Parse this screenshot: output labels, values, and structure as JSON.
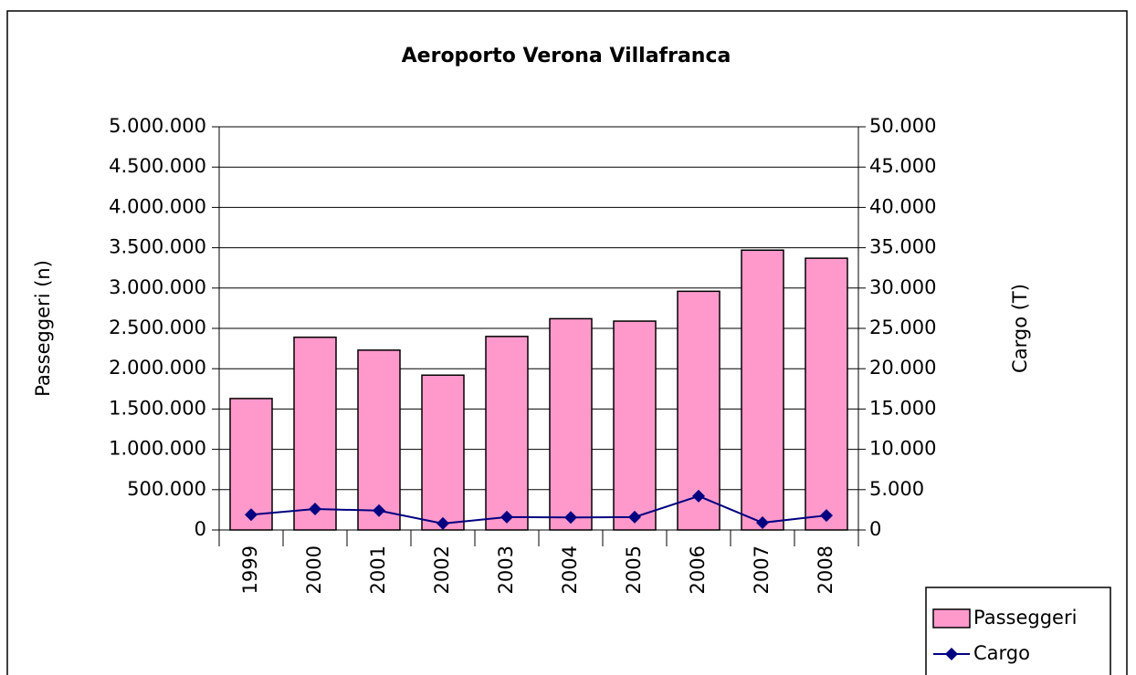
{
  "chart_data": {
    "type": "bar",
    "title": "Aeroporto Verona Villafranca",
    "ylabel": "Passeggeri (n)",
    "y2label": "Cargo (T)",
    "categories": [
      "1999",
      "2000",
      "2001",
      "2002",
      "2003",
      "2004",
      "2005",
      "2006",
      "2007",
      "2008"
    ],
    "series": [
      {
        "name": "Passeggeri",
        "type": "bar",
        "color": "#ff99cc",
        "values": [
          1630000,
          2390000,
          2230000,
          1920000,
          2400000,
          2620000,
          2590000,
          2960000,
          3470000,
          3370000
        ]
      },
      {
        "name": "Cargo",
        "type": "line",
        "axis": "y2",
        "color": "#000080",
        "values": [
          1900,
          2600,
          2400,
          800,
          1600,
          1550,
          1600,
          4200,
          900,
          1800
        ]
      }
    ],
    "ylim": [
      0,
      5000000
    ],
    "yticks": [
      0,
      {
        "value": 500000,
        "label": "500.000"
      },
      {
        "value": 1000000,
        "label": "1.000.000"
      },
      {
        "value": 1500000,
        "label": "1.500.000"
      },
      {
        "value": 2000000,
        "label": "2.000.000"
      },
      {
        "value": 2500000,
        "label": "2.500.000"
      },
      {
        "value": 3000000,
        "label": "3.000.000"
      },
      {
        "value": 3500000,
        "label": "3.500.000"
      },
      {
        "value": 4000000,
        "label": "4.000.000"
      },
      {
        "value": 4500000,
        "label": "4.500.000"
      },
      {
        "value": 5000000,
        "label": "5.000.000"
      }
    ],
    "y2lim": [
      0,
      50000
    ],
    "y2ticks": [
      0,
      {
        "value": 5000,
        "label": "5.000"
      },
      {
        "value": 10000,
        "label": "10.000"
      },
      {
        "value": 15000,
        "label": "15.000"
      },
      {
        "value": 20000,
        "label": "20.000"
      },
      {
        "value": 25000,
        "label": "25.000"
      },
      {
        "value": 30000,
        "label": "30.000"
      },
      {
        "value": 35000,
        "label": "35.000"
      },
      {
        "value": 40000,
        "label": "40.000"
      },
      {
        "value": 45000,
        "label": "45.000"
      },
      {
        "value": 50000,
        "label": "50.000"
      }
    ],
    "grid": true,
    "legend": "lower right"
  }
}
